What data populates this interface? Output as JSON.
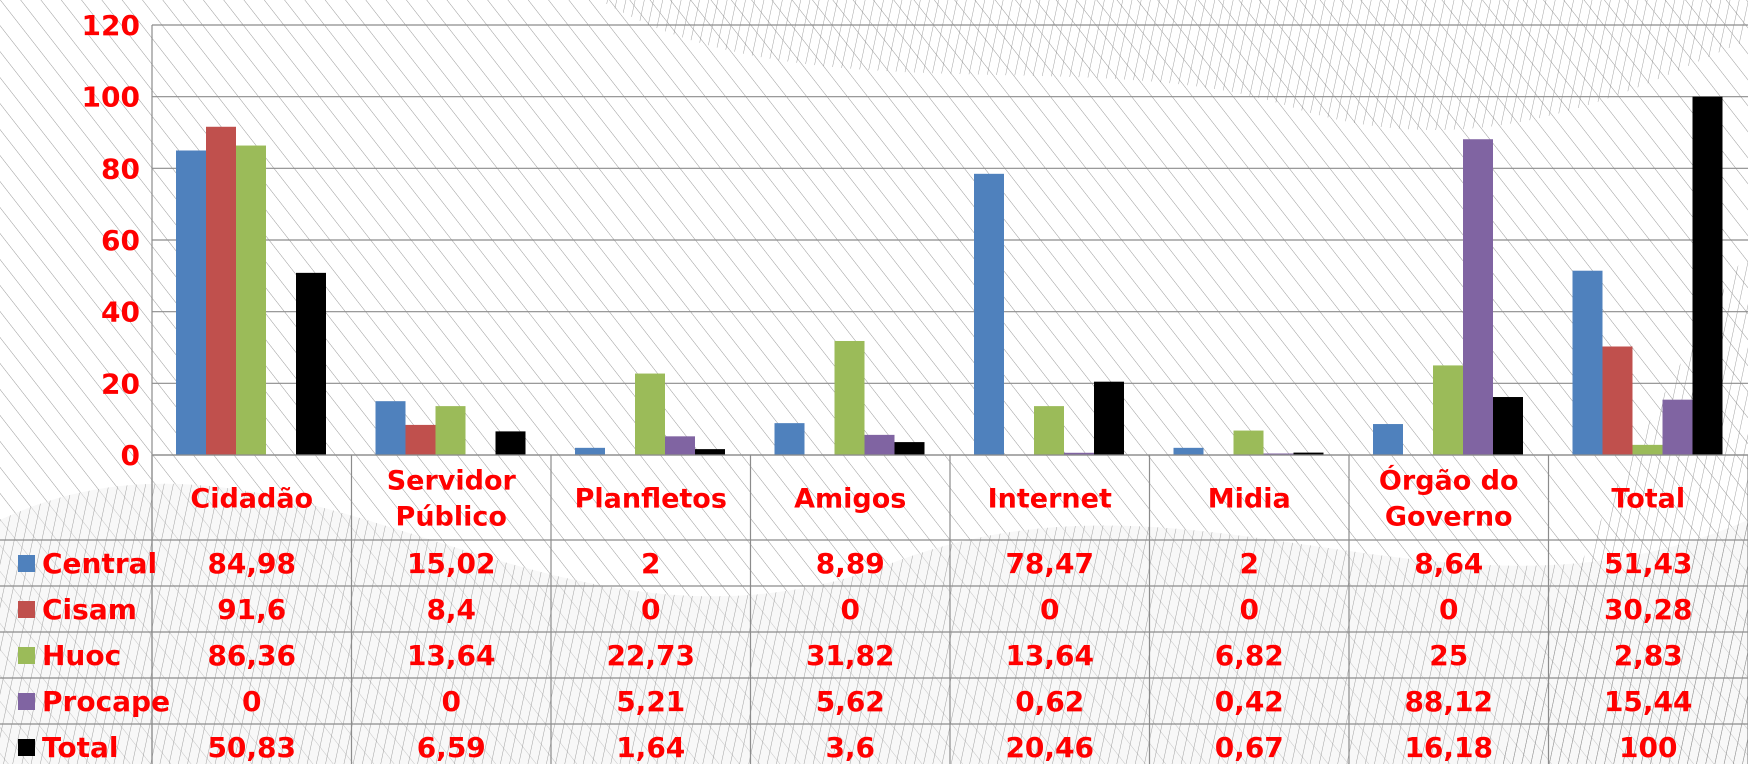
{
  "chart_data": {
    "type": "bar",
    "title": "",
    "xlabel": "",
    "ylabel": "",
    "ylim": [
      0,
      120
    ],
    "yticks": [
      0,
      20,
      40,
      60,
      80,
      100,
      120
    ],
    "grid": true,
    "legend": "in-table-left",
    "categories": [
      "Cidadão",
      "Servidor Público",
      "Planfletos",
      "Amigos",
      "Internet",
      "Midia",
      "Órgão do Governo",
      "Total"
    ],
    "category_lines": [
      [
        "Cidadão"
      ],
      [
        "Servidor",
        "Público"
      ],
      [
        "Planfletos"
      ],
      [
        "Amigos"
      ],
      [
        "Internet"
      ],
      [
        "Midia"
      ],
      [
        "Órgão do",
        "Governo"
      ],
      [
        "Total"
      ]
    ],
    "series": [
      {
        "name": "Central",
        "color": "#4f81bd",
        "values": [
          84.98,
          15.02,
          2,
          8.89,
          78.47,
          2,
          8.64,
          51.43
        ],
        "labels": [
          "84,98",
          "15,02",
          "2",
          "8,89",
          "78,47",
          "2",
          "8,64",
          "51,43"
        ]
      },
      {
        "name": "Cisam",
        "color": "#c0504d",
        "values": [
          91.6,
          8.4,
          0,
          0,
          0,
          0,
          0,
          30.28
        ],
        "labels": [
          "91,6",
          "8,4",
          "0",
          "0",
          "0",
          "0",
          "0",
          "30,28"
        ]
      },
      {
        "name": "Huoc",
        "color": "#9bbb59",
        "values": [
          86.36,
          13.64,
          22.73,
          31.82,
          13.64,
          6.82,
          25,
          2.83
        ],
        "labels": [
          "86,36",
          "13,64",
          "22,73",
          "31,82",
          "13,64",
          "6,82",
          "25",
          "2,83"
        ]
      },
      {
        "name": "Procape",
        "color": "#8064a2",
        "values": [
          0,
          0,
          5.21,
          5.62,
          0.62,
          0.42,
          88.12,
          15.44
        ],
        "labels": [
          "0",
          "0",
          "5,21",
          "5,62",
          "0,62",
          "0,42",
          "88,12",
          "15,44"
        ]
      },
      {
        "name": "Total",
        "color": "#000000",
        "values": [
          50.83,
          6.59,
          1.64,
          3.6,
          20.46,
          0.67,
          16.18,
          100
        ],
        "labels": [
          "50,83",
          "6,59",
          "1,64",
          "3,6",
          "20,46",
          "0,67",
          "16,18",
          "100"
        ]
      }
    ],
    "text_color": "#ff0000",
    "grid_color": "#8c8c8c"
  }
}
